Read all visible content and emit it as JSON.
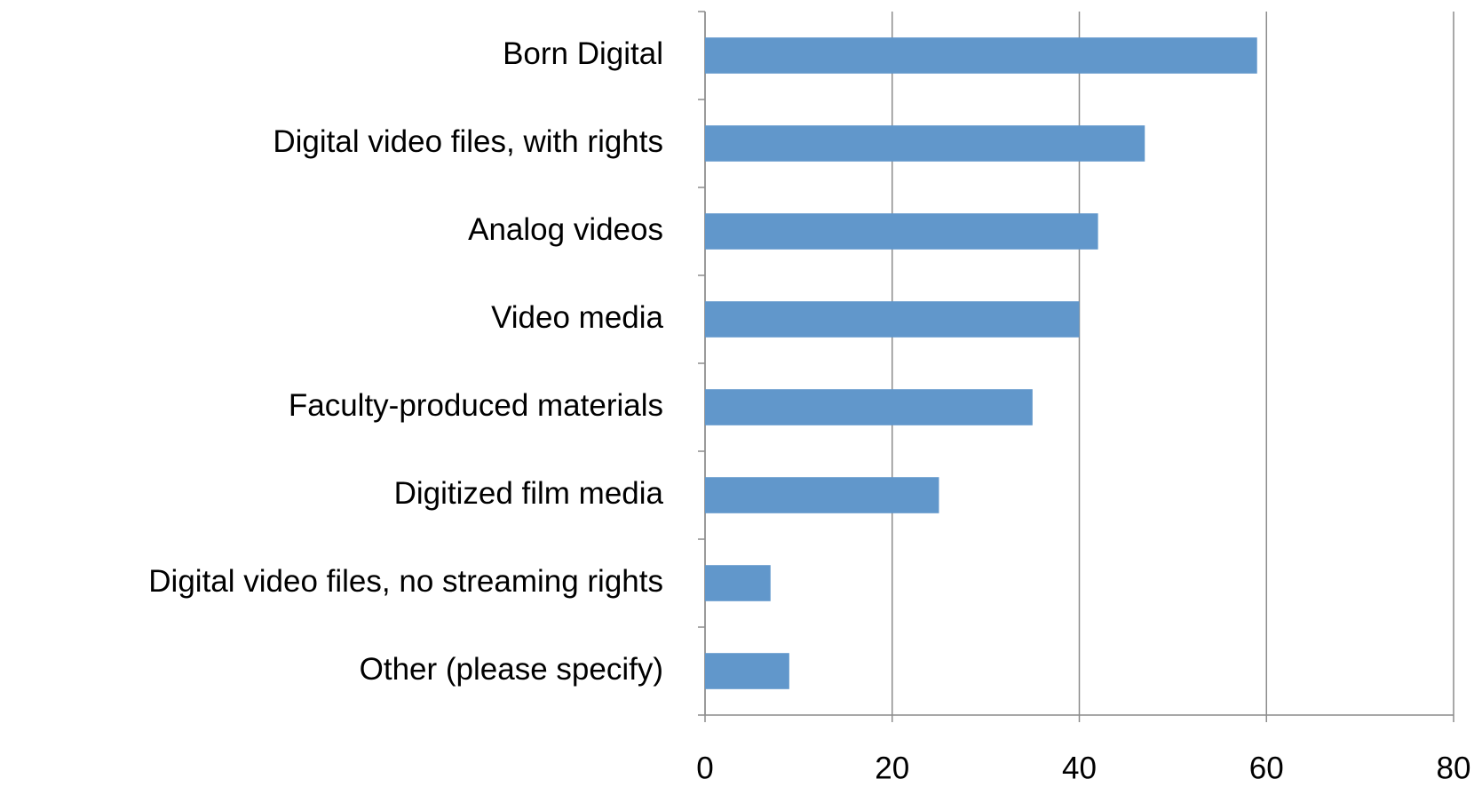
{
  "chart_data": {
    "type": "barh",
    "categories": [
      "Born Digital",
      "Digital video files, with rights",
      "Analog videos",
      "Video media",
      "Faculty-produced materials",
      "Digitized film media",
      "Digital video files, no streaming rights",
      "Other (please specify)"
    ],
    "values": [
      59,
      47,
      42,
      40,
      35,
      25,
      7,
      9
    ],
    "color": "#6197cb",
    "xlim": [
      0,
      80
    ],
    "xticks": [
      0,
      20,
      40,
      60,
      80
    ],
    "grid": true
  }
}
